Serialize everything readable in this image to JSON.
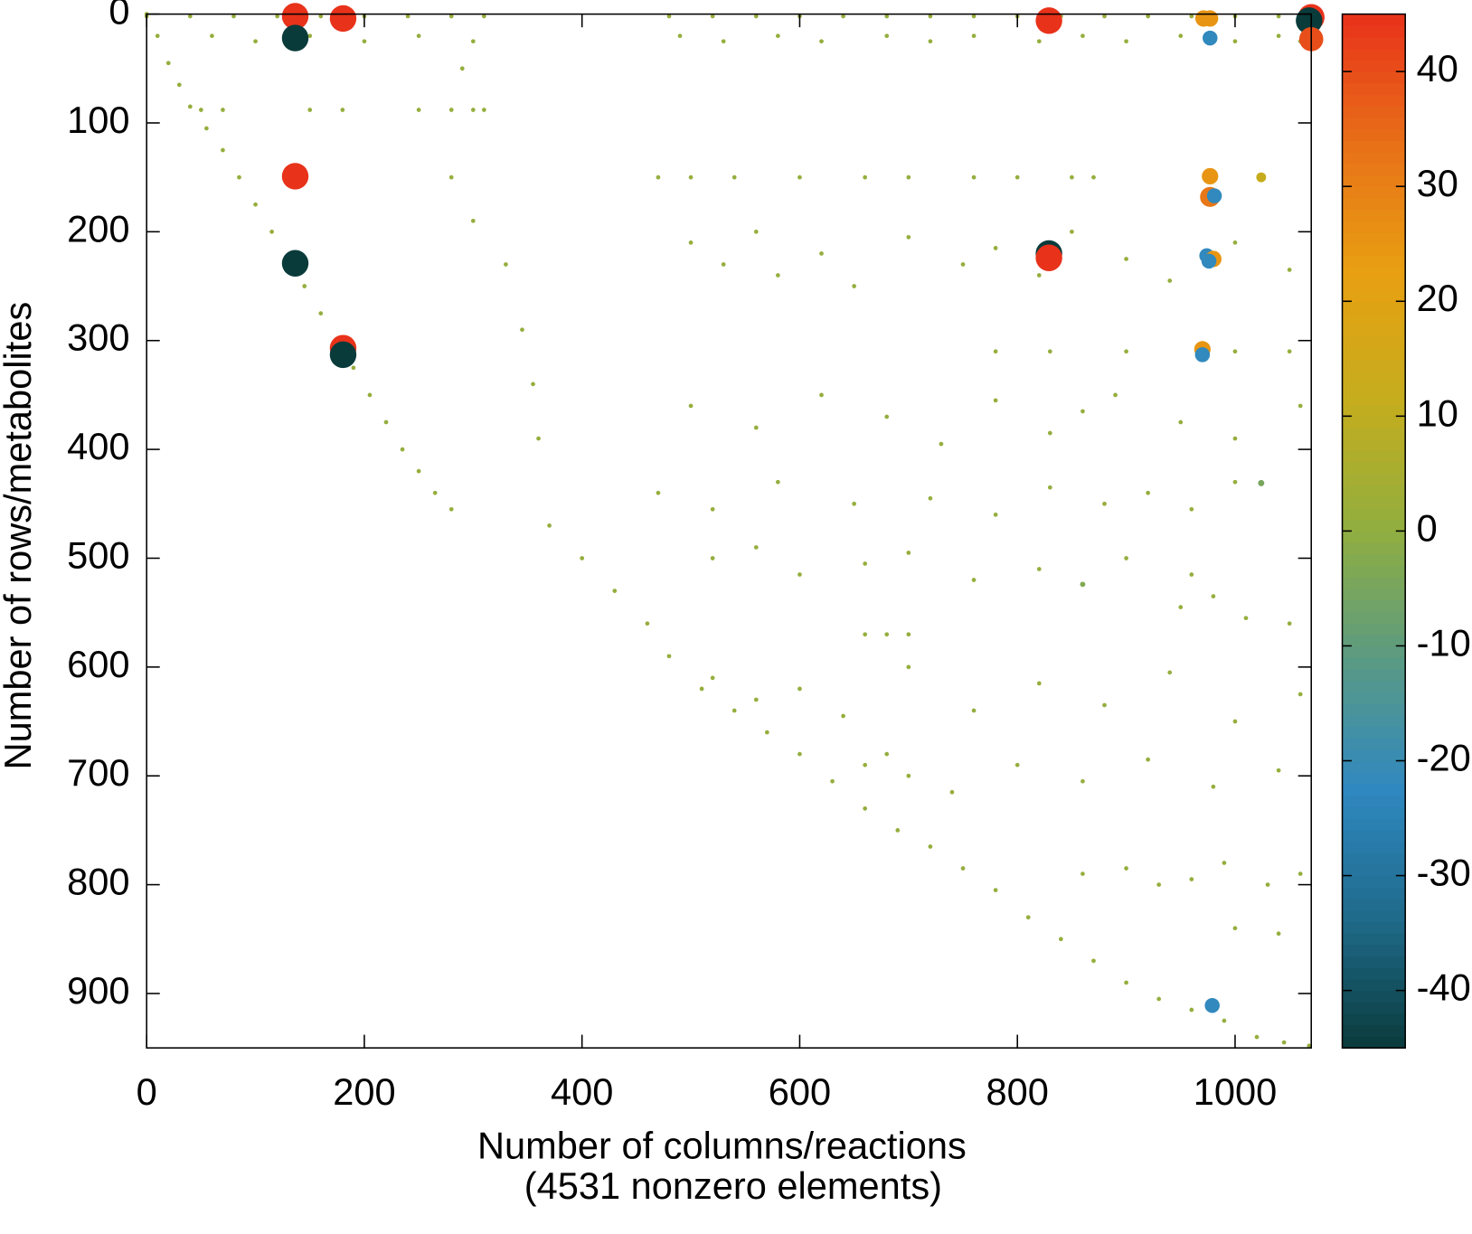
{
  "chart_data": {
    "type": "scatter",
    "xlabel": [
      "Number of columns/reactions",
      "(4531 nonzero elements)"
    ],
    "ylabel": "Number of rows/metabolites",
    "x": [
      0,
      10,
      20,
      30,
      40,
      55,
      70,
      85,
      100,
      115,
      130,
      145,
      160,
      175,
      190,
      205,
      220,
      235,
      250,
      265,
      280,
      370,
      400,
      430,
      460,
      480,
      510,
      540,
      570,
      600,
      630,
      660,
      690,
      720,
      750,
      780,
      810,
      840,
      870,
      900,
      930,
      960,
      990,
      1020,
      1045,
      1068,
      0,
      40,
      80,
      120,
      160,
      200,
      240,
      280,
      310,
      480,
      520,
      560,
      600,
      640,
      680,
      720,
      760,
      800,
      840,
      880,
      920,
      960,
      1000,
      1040,
      60,
      100,
      150,
      200,
      250,
      300,
      490,
      530,
      580,
      620,
      680,
      720,
      760,
      820,
      860,
      900,
      950,
      1000,
      1040,
      1060,
      50,
      70,
      150,
      180,
      250,
      280,
      300,
      310,
      290,
      280,
      300,
      330,
      345,
      355,
      360,
      470,
      500,
      540,
      600,
      660,
      700,
      760,
      800,
      850,
      870,
      500,
      530,
      560,
      580,
      620,
      650,
      700,
      750,
      780,
      820,
      850,
      900,
      940,
      1000,
      1050,
      780,
      830,
      900,
      1000,
      1050,
      500,
      560,
      620,
      680,
      730,
      780,
      830,
      860,
      890,
      950,
      1000,
      1060,
      470,
      520,
      580,
      650,
      720,
      780,
      830,
      880,
      920,
      960,
      1000,
      520,
      560,
      600,
      660,
      700,
      760,
      820,
      900,
      960,
      950,
      980,
      1010,
      1050,
      660,
      680,
      700,
      520,
      560,
      600,
      640,
      700,
      760,
      820,
      880,
      940,
      1000,
      1060,
      660,
      680,
      700,
      740,
      800,
      860,
      920,
      980,
      1040,
      860,
      900,
      930,
      960,
      990,
      1030,
      1060,
      1000,
      1040,
      136.5,
      180.5,
      136.5,
      136.5,
      136.5,
      180.5,
      180.5,
      829,
      829,
      829,
      977,
      971,
      977,
      1070,
      1068,
      1070,
      977,
      977,
      981,
      974,
      980,
      976,
      970,
      970,
      979,
      1024,
      1024,
      860
    ],
    "y": [
      0,
      20,
      45,
      65,
      85,
      105,
      125,
      150,
      175,
      200,
      225,
      250,
      275,
      300,
      325,
      350,
      375,
      400,
      420,
      440,
      455,
      470,
      500,
      530,
      560,
      590,
      620,
      640,
      660,
      680,
      705,
      730,
      750,
      765,
      785,
      805,
      830,
      850,
      870,
      890,
      905,
      915,
      925,
      940,
      945,
      948,
      2,
      2,
      2,
      2,
      2,
      2,
      2,
      2,
      2,
      2,
      2,
      2,
      2,
      2,
      2,
      2,
      2,
      2,
      2,
      2,
      2,
      2,
      2,
      2,
      20,
      25,
      20,
      25,
      20,
      25,
      20,
      25,
      20,
      25,
      20,
      25,
      20,
      25,
      20,
      25,
      20,
      25,
      20,
      25,
      88,
      88,
      88,
      88,
      88,
      88,
      88,
      88,
      50,
      150,
      190,
      230,
      290,
      340,
      390,
      150,
      150,
      150,
      150,
      150,
      150,
      150,
      150,
      150,
      150,
      210,
      230,
      200,
      240,
      220,
      250,
      205,
      230,
      215,
      240,
      200,
      225,
      245,
      210,
      235,
      310,
      310,
      310,
      310,
      310,
      360,
      380,
      350,
      370,
      395,
      355,
      385,
      365,
      350,
      375,
      390,
      360,
      440,
      455,
      430,
      450,
      445,
      460,
      435,
      450,
      440,
      455,
      430,
      500,
      490,
      515,
      505,
      495,
      520,
      510,
      500,
      515,
      545,
      535,
      555,
      560,
      570,
      570,
      570,
      610,
      630,
      620,
      645,
      600,
      640,
      615,
      635,
      605,
      650,
      625,
      690,
      680,
      700,
      715,
      690,
      705,
      685,
      710,
      695,
      790,
      785,
      800,
      795,
      780,
      800,
      790,
      840,
      845,
      2,
      4,
      22,
      149,
      229,
      307,
      313,
      6,
      220,
      224,
      4,
      4,
      22,
      3,
      6,
      23,
      149,
      168,
      167,
      222,
      225,
      227,
      308,
      313,
      911,
      150,
      431,
      524
    ],
    "values": [
      1,
      1,
      1,
      1,
      1,
      1,
      1,
      1,
      1,
      1,
      1,
      1,
      1,
      1,
      1,
      1,
      1,
      1,
      1,
      1,
      1,
      1,
      1,
      1,
      1,
      1,
      1,
      1,
      1,
      1,
      1,
      1,
      1,
      1,
      1,
      1,
      1,
      1,
      1,
      1,
      1,
      1,
      1,
      1,
      1,
      1,
      1,
      1,
      1,
      1,
      1,
      1,
      1,
      1,
      1,
      1,
      1,
      1,
      1,
      1,
      1,
      1,
      1,
      1,
      1,
      1,
      1,
      1,
      1,
      1,
      1,
      1,
      1,
      1,
      1,
      1,
      1,
      1,
      1,
      1,
      1,
      1,
      1,
      1,
      1,
      1,
      1,
      1,
      1,
      1,
      1,
      1,
      1,
      1,
      1,
      1,
      1,
      1,
      1,
      1,
      1,
      1,
      1,
      1,
      1,
      1,
      1,
      1,
      1,
      1,
      1,
      1,
      1,
      1,
      1,
      1,
      1,
      1,
      1,
      1,
      1,
      1,
      1,
      1,
      1,
      1,
      1,
      1,
      1,
      1,
      1,
      1,
      1,
      1,
      1,
      1,
      1,
      1,
      1,
      1,
      1,
      1,
      1,
      1,
      1,
      1,
      1,
      1,
      1,
      1,
      1,
      1,
      1,
      1,
      1,
      1,
      1,
      1,
      1,
      1,
      1,
      1,
      1,
      1,
      1,
      1,
      1,
      1,
      1,
      1,
      1,
      1,
      1,
      1,
      1,
      1,
      1,
      1,
      1,
      1,
      1,
      1,
      1,
      1,
      1,
      1,
      1,
      1,
      1,
      1,
      1,
      1,
      1,
      1,
      1,
      1,
      1,
      1,
      1,
      1,
      1,
      1,
      1,
      45,
      45,
      -45,
      45,
      -45,
      45,
      -45,
      45,
      -45,
      45,
      25,
      25,
      -22,
      45,
      -45,
      40,
      25,
      32,
      -22,
      -22,
      25,
      -22,
      25,
      -22,
      -22,
      12,
      -5,
      -3
    ],
    "xlim": [
      0,
      1070
    ],
    "ylim": [
      0,
      950
    ],
    "y_reversed": true,
    "xticks": [
      0,
      200,
      400,
      600,
      800,
      1000
    ],
    "yticks": [
      0,
      100,
      200,
      300,
      400,
      500,
      600,
      700,
      800,
      900
    ],
    "colorbar": {
      "clim": [
        -45,
        45
      ],
      "ticks": [
        -40,
        -30,
        -20,
        -10,
        0,
        10,
        20,
        30,
        40
      ],
      "colormap": [
        "#0a3b3b",
        "#1f6a8a",
        "#2f88c0",
        "#5a9a84",
        "#90ae40",
        "#c4ad1e",
        "#e8a012",
        "#e87018",
        "#e8321a"
      ]
    }
  }
}
